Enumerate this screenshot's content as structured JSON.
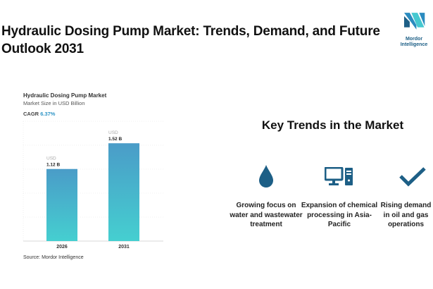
{
  "header": {
    "title": "Hydraulic Dosing Pump Market: Trends, Demand, and Future Outlook 2031"
  },
  "logo": {
    "text": "Mordor Intelligence"
  },
  "chart_data": {
    "type": "bar",
    "title": "Hydraulic Dosing Pump Market",
    "subtitle": "Market Size in USD Billion",
    "cagr_label": "CAGR",
    "cagr_value": "6.37%",
    "categories": [
      "2026",
      "2031"
    ],
    "values": [
      1.12,
      1.52
    ],
    "data_labels": [
      {
        "unit": "USD",
        "value": "1.12 B"
      },
      {
        "unit": "USD",
        "value": "1.52 B"
      }
    ],
    "colors": {
      "top": "#4a9cc8",
      "bottom": "#45cfd0"
    },
    "grid": true,
    "source": "Source: Mordor Intelligence"
  },
  "trends": {
    "heading": "Key Trends in the Market",
    "icon_color": "#1d5f86",
    "items": [
      {
        "icon": "water-drop-icon",
        "label": "Growing focus on water and wastewater treatment"
      },
      {
        "icon": "computer-icon",
        "label": "Expansion of chemical processing in Asia-Pacific"
      },
      {
        "icon": "checkmark-icon",
        "label": "Rising demand in oil and gas operations"
      }
    ]
  }
}
